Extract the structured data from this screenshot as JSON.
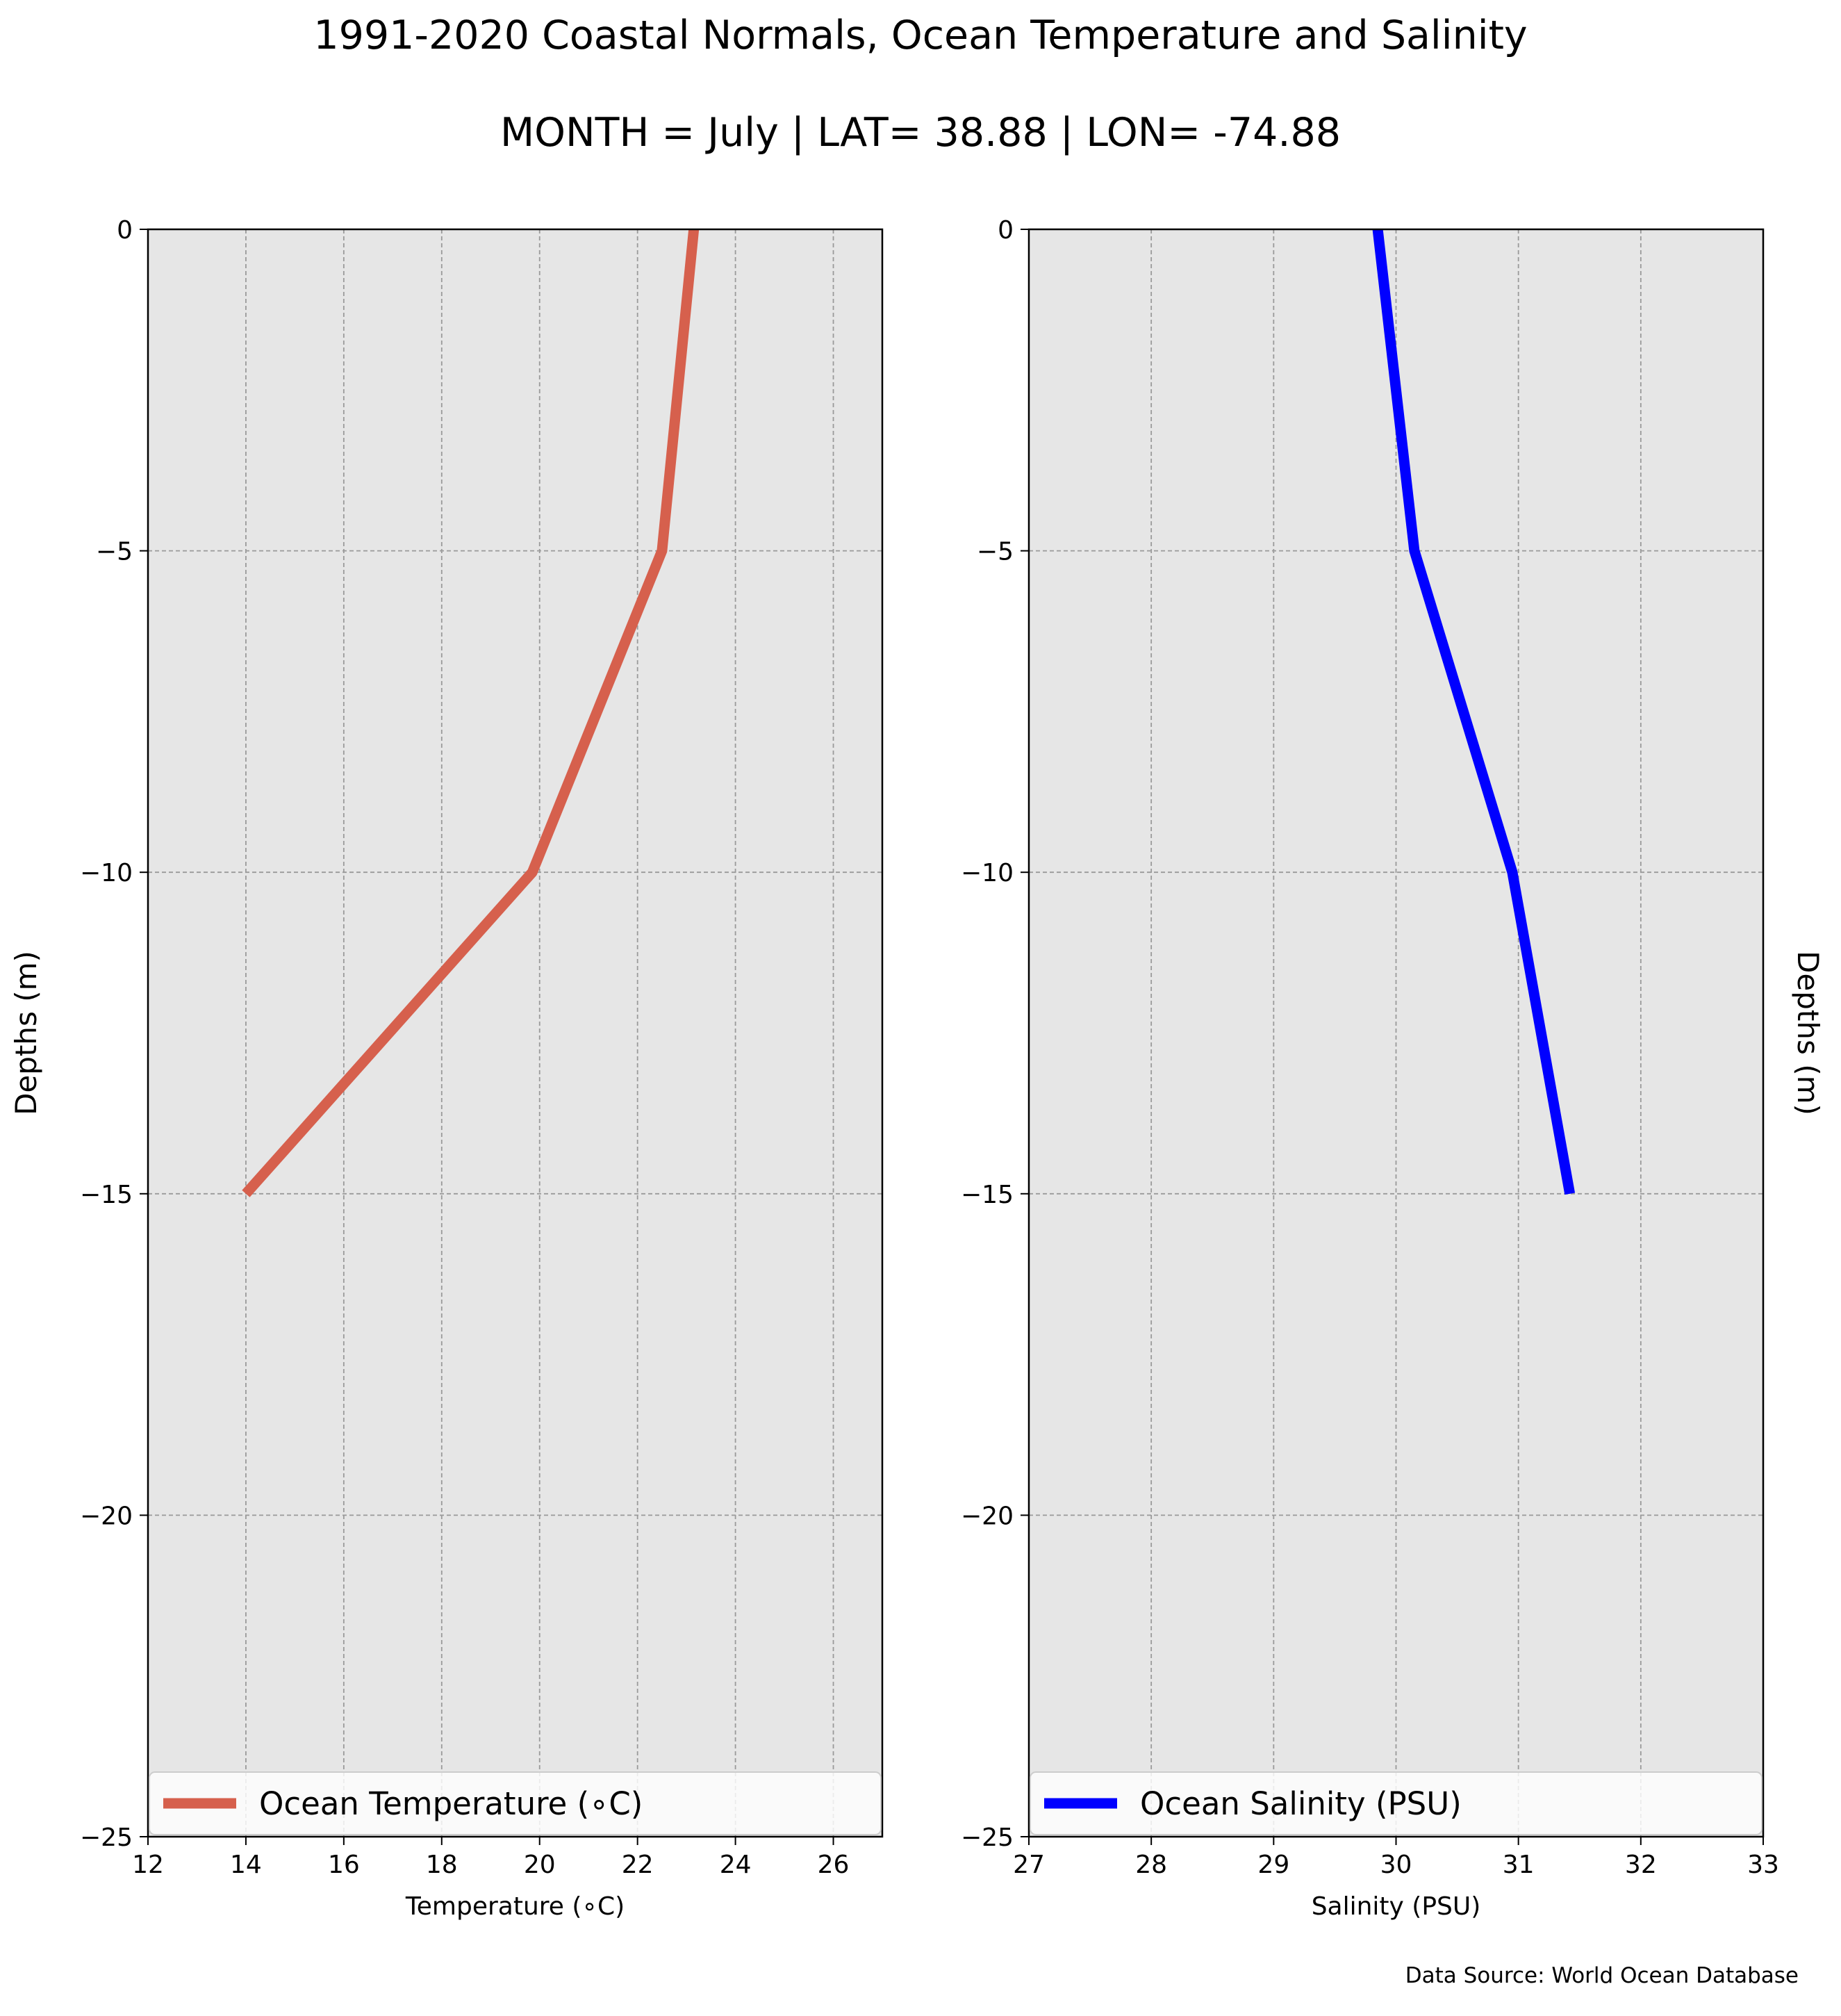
{
  "figure": {
    "title": "1991-2020 Coastal Normals, Ocean Temperature and Salinity",
    "subtitle": "MONTH = July | LAT= 38.88 | LON= -74.88",
    "source": "Data Source: World Ocean Database"
  },
  "chart_data": [
    {
      "type": "line",
      "xlabel": "Temperature ($^\\circ$C)",
      "xlabel_display": "Temperature (∘C)",
      "ylabel": "Depths (m)",
      "ylabel_position": "left",
      "xlim": [
        12,
        27
      ],
      "ylim": [
        -25,
        0
      ],
      "xticks": [
        12,
        14,
        16,
        18,
        20,
        22,
        24,
        26
      ],
      "yticks": [
        0,
        -5,
        -10,
        -15,
        -20,
        -25
      ],
      "grid": true,
      "background": "#e6e6e6",
      "legend_position": "bottom",
      "series": [
        {
          "name": "Ocean Temperature (∘C)",
          "color": "#d6604d",
          "x": [
            23.15,
            22.5,
            19.85,
            14.0
          ],
          "y": [
            0,
            -5,
            -10,
            -15
          ]
        }
      ]
    },
    {
      "type": "line",
      "xlabel": "Salinity (PSU)",
      "xlabel_display": "Salinity (PSU)",
      "ylabel": "Depths (m)",
      "ylabel_position": "right",
      "xlim": [
        27,
        33
      ],
      "ylim": [
        -25,
        0
      ],
      "xticks": [
        27,
        28,
        29,
        30,
        31,
        32,
        33
      ],
      "yticks": [
        0,
        -5,
        -10,
        -15,
        -20,
        -25
      ],
      "grid": true,
      "background": "#e6e6e6",
      "legend_position": "bottom",
      "series": [
        {
          "name": "Ocean Salinity (PSU)",
          "color": "#0000ff",
          "x": [
            29.85,
            30.15,
            30.95,
            31.42
          ],
          "y": [
            0,
            -5,
            -10,
            -15
          ]
        }
      ]
    }
  ]
}
